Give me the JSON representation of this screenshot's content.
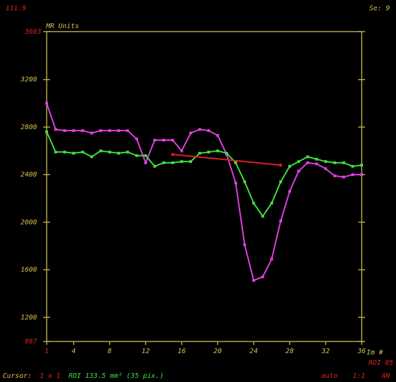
{
  "header": {
    "left": "111.9",
    "right": "Se: 9"
  },
  "chart_data": {
    "type": "line",
    "ylabel": "MR Units",
    "xlabel": "Im #",
    "x": [
      1,
      2,
      3,
      4,
      5,
      6,
      7,
      8,
      9,
      10,
      11,
      12,
      13,
      14,
      15,
      16,
      17,
      18,
      19,
      20,
      21,
      22,
      23,
      24,
      25,
      26,
      27,
      28,
      29,
      30,
      31,
      32,
      33,
      34,
      35,
      36
    ],
    "xlim": [
      1,
      36
    ],
    "xticks": [
      1,
      4,
      8,
      12,
      16,
      20,
      24,
      28,
      32,
      36
    ],
    "ylim": [
      997,
      3603
    ],
    "yticks": [
      997,
      1200,
      1600,
      2000,
      2400,
      2800,
      3200,
      3603
    ],
    "series": [
      {
        "color": "#e040e0",
        "values": [
          3000,
          2780,
          2770,
          2770,
          2770,
          2750,
          2770,
          2770,
          2770,
          2770,
          2700,
          2500,
          2690,
          2690,
          2690,
          2600,
          2750,
          2780,
          2770,
          2730,
          2570,
          2330,
          1810,
          1510,
          1540,
          1690,
          2010,
          2260,
          2430,
          2500,
          2490,
          2450,
          2390,
          2380,
          2400,
          2400
        ]
      },
      {
        "color": "#40e040",
        "values": [
          2760,
          2590,
          2590,
          2580,
          2590,
          2550,
          2600,
          2590,
          2580,
          2590,
          2560,
          2560,
          2470,
          2500,
          2500,
          2510,
          2510,
          2580,
          2590,
          2600,
          2580,
          2500,
          2340,
          2160,
          2050,
          2160,
          2340,
          2470,
          2510,
          2550,
          2530,
          2510,
          2500,
          2500,
          2470,
          2480
        ]
      },
      {
        "color": "#e02020",
        "x": [
          15,
          27
        ],
        "values": [
          2570,
          2480
        ]
      }
    ]
  },
  "roi_label": "ROI 05",
  "footer": {
    "cursor_label": "Cursor:",
    "cursor": "1 x 1",
    "roi": "ROI 133.5 mm² (35 pix.)",
    "zoom_mode": "auto",
    "zoom": "1:1",
    "extra": "AN"
  }
}
